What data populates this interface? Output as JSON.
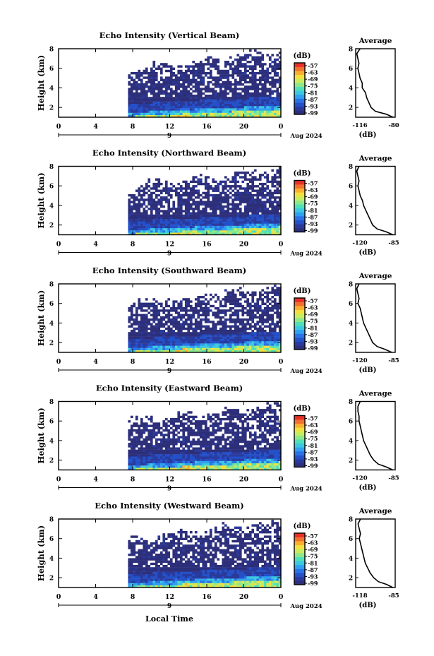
{
  "figure": {
    "xlabel_bottom": "Local Time",
    "date_label": "Aug 2024",
    "date_day": "9",
    "colorbar_unit": "(dB)",
    "colorbar_ticks": [
      "-57",
      "-63",
      "-69",
      "-75",
      "-81",
      "-87",
      "-93",
      "-99"
    ],
    "average_title": "Average",
    "average_xlabel": "(dB)",
    "main_ylabel": "Height (km)"
  },
  "colors": {
    "colormap": [
      "#2d2f7a",
      "#2a3a9c",
      "#2450c8",
      "#2a72e6",
      "#30a0f0",
      "#3cc8e0",
      "#50e0b8",
      "#8ee88a",
      "#c8ec60",
      "#f2e040",
      "#f8b030",
      "#f07030",
      "#e83028"
    ],
    "background": "#ffffff",
    "axis": "#000000"
  },
  "chart_data": [
    {
      "type": "heatmap",
      "title": "Echo Intensity (Vertical Beam)",
      "xlabel": "Local Time",
      "ylabel": "Height (km)",
      "x_ticks": [
        "0",
        "4",
        "8",
        "12",
        "16",
        "20",
        "0"
      ],
      "x_range": [
        0,
        24
      ],
      "y_ticks": [
        "2",
        "4",
        "6",
        "8"
      ],
      "y_range": [
        1,
        8
      ],
      "data_start_hour": 7.5,
      "color_range": [
        -99,
        -57
      ],
      "average_profile": {
        "xlim": [
          -116,
          -80
        ],
        "x_ticks": [
          "-116",
          "-80"
        ],
        "y_ticks": [
          "2",
          "4",
          "6",
          "8"
        ],
        "height_km": [
          1.0,
          1.3,
          1.6,
          2.0,
          2.5,
          3.0,
          3.5,
          4.0,
          4.5,
          5.0,
          5.5,
          6.0,
          6.5,
          7.0,
          7.5,
          8.0
        ],
        "db": [
          -82,
          -88,
          -98,
          -102,
          -104,
          -106,
          -107,
          -110,
          -110,
          -112,
          -113,
          -114,
          -113,
          -114,
          -115,
          -112
        ]
      }
    },
    {
      "type": "heatmap",
      "title": "Echo Intensity (Northward Beam)",
      "xlabel": "Local Time",
      "ylabel": "Height (km)",
      "x_ticks": [
        "0",
        "4",
        "8",
        "12",
        "16",
        "20",
        "0"
      ],
      "x_range": [
        0,
        24
      ],
      "y_ticks": [
        "2",
        "4",
        "6",
        "8"
      ],
      "y_range": [
        1,
        8
      ],
      "data_start_hour": 7.5,
      "color_range": [
        -99,
        -57
      ],
      "average_profile": {
        "xlim": [
          -120,
          -85
        ],
        "x_ticks": [
          "-120",
          "-85"
        ],
        "y_ticks": [
          "2",
          "4",
          "6",
          "8"
        ],
        "height_km": [
          1.0,
          1.3,
          1.6,
          2.0,
          2.5,
          3.0,
          3.5,
          4.0,
          4.5,
          5.0,
          5.5,
          6.0,
          6.5,
          7.0,
          7.5,
          8.0
        ],
        "db": [
          -87,
          -93,
          -101,
          -105,
          -107,
          -109,
          -111,
          -113,
          -114,
          -116,
          -117,
          -118,
          -117,
          -118,
          -119,
          -117
        ]
      }
    },
    {
      "type": "heatmap",
      "title": "Echo Intensity (Southward Beam)",
      "xlabel": "Local Time",
      "ylabel": "Height (km)",
      "x_ticks": [
        "0",
        "4",
        "8",
        "12",
        "16",
        "20",
        "0"
      ],
      "x_range": [
        0,
        24
      ],
      "y_ticks": [
        "2",
        "4",
        "6",
        "8"
      ],
      "y_range": [
        1,
        8
      ],
      "data_start_hour": 7.5,
      "color_range": [
        -99,
        -57
      ],
      "average_profile": {
        "xlim": [
          -120,
          -85
        ],
        "x_ticks": [
          "-120",
          "-85"
        ],
        "y_ticks": [
          "2",
          "4",
          "6",
          "8"
        ],
        "height_km": [
          1.0,
          1.3,
          1.6,
          2.0,
          2.5,
          3.0,
          3.5,
          4.0,
          4.5,
          5.0,
          5.5,
          6.0,
          6.5,
          7.0,
          7.5,
          8.0
        ],
        "db": [
          -88,
          -94,
          -101,
          -105,
          -107,
          -109,
          -111,
          -113,
          -114,
          -115,
          -116,
          -118,
          -117,
          -118,
          -119,
          -117
        ]
      }
    },
    {
      "type": "heatmap",
      "title": "Echo Intensity (Eastward Beam)",
      "xlabel": "Local Time",
      "ylabel": "Height (km)",
      "x_ticks": [
        "0",
        "4",
        "8",
        "12",
        "16",
        "20",
        "0"
      ],
      "x_range": [
        0,
        24
      ],
      "y_ticks": [
        "2",
        "4",
        "6",
        "8"
      ],
      "y_range": [
        1,
        8
      ],
      "data_start_hour": 7.5,
      "color_range": [
        -99,
        -57
      ],
      "average_profile": {
        "xlim": [
          -120,
          -85
        ],
        "x_ticks": [
          "-120",
          "-85"
        ],
        "y_ticks": [
          "2",
          "4",
          "6",
          "8"
        ],
        "height_km": [
          1.0,
          1.3,
          1.6,
          2.0,
          2.5,
          3.0,
          3.5,
          4.0,
          4.5,
          5.0,
          5.5,
          6.0,
          6.5,
          7.0,
          7.5,
          8.0
        ],
        "db": [
          -87,
          -93,
          -100,
          -104,
          -107,
          -109,
          -111,
          -113,
          -114,
          -115,
          -116,
          -117,
          -117,
          -118,
          -118,
          -116
        ]
      }
    },
    {
      "type": "heatmap",
      "title": "Echo Intensity (Westward Beam)",
      "xlabel": "Local Time",
      "ylabel": "Height (km)",
      "x_ticks": [
        "0",
        "4",
        "8",
        "12",
        "16",
        "20",
        "0"
      ],
      "x_range": [
        0,
        24
      ],
      "y_ticks": [
        "2",
        "4",
        "6",
        "8"
      ],
      "y_range": [
        1,
        8
      ],
      "data_start_hour": 7.5,
      "color_range": [
        -99,
        -57
      ],
      "average_profile": {
        "xlim": [
          -118,
          -85
        ],
        "x_ticks": [
          "-118",
          "-85"
        ],
        "y_ticks": [
          "2",
          "4",
          "6",
          "8"
        ],
        "height_km": [
          1.0,
          1.3,
          1.6,
          2.0,
          2.5,
          3.0,
          3.5,
          4.0,
          4.5,
          5.0,
          5.5,
          6.0,
          6.5,
          7.0,
          7.5,
          8.0
        ],
        "db": [
          -87,
          -92,
          -99,
          -103,
          -106,
          -108,
          -110,
          -111,
          -112,
          -113,
          -114,
          -115,
          -114,
          -115,
          -116,
          -114
        ]
      }
    }
  ]
}
